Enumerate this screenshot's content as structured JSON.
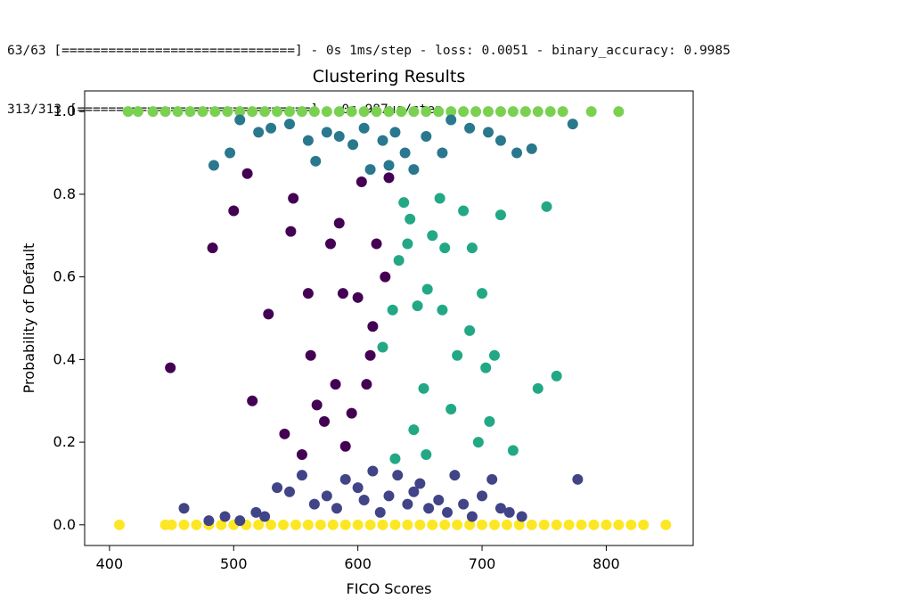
{
  "console": {
    "lines": [
      "63/63 [==============================] - 0s 1ms/step - loss: 0.0051 - binary_accuracy: 0.9985",
      "313/313 [==============================] - 0s 987us/step"
    ]
  },
  "chart_data": {
    "type": "scatter",
    "title": "Clustering Results",
    "xlabel": "FICO Scores",
    "ylabel": "Probability of Default",
    "xlim": [
      380,
      870
    ],
    "ylim": [
      -0.05,
      1.05
    ],
    "xticks": [
      400,
      500,
      600,
      700,
      800
    ],
    "xtick_labels": [
      "400",
      "500",
      "600",
      "700",
      "800"
    ],
    "yticks": [
      0.0,
      0.2,
      0.4,
      0.6,
      0.8,
      1.0
    ],
    "ytick_labels": [
      "0.0",
      "0.2",
      "0.4",
      "0.6",
      "0.8",
      "1.0"
    ],
    "grid": false,
    "legend": "none",
    "series": [
      {
        "color": "#fde725",
        "points": [
          [
            408,
            0.0
          ],
          [
            445,
            0.0
          ],
          [
            450,
            0.0
          ],
          [
            460,
            0.0
          ],
          [
            470,
            0.0
          ],
          [
            480,
            0.0
          ],
          [
            490,
            0.0
          ],
          [
            500,
            0.0
          ],
          [
            510,
            0.0
          ],
          [
            520,
            0.0
          ],
          [
            530,
            0.0
          ],
          [
            540,
            0.0
          ],
          [
            550,
            0.0
          ],
          [
            560,
            0.0
          ],
          [
            570,
            0.0
          ],
          [
            580,
            0.0
          ],
          [
            590,
            0.0
          ],
          [
            600,
            0.0
          ],
          [
            610,
            0.0
          ],
          [
            620,
            0.0
          ],
          [
            630,
            0.0
          ],
          [
            640,
            0.0
          ],
          [
            650,
            0.0
          ],
          [
            660,
            0.0
          ],
          [
            670,
            0.0
          ],
          [
            680,
            0.0
          ],
          [
            690,
            0.0
          ],
          [
            700,
            0.0
          ],
          [
            710,
            0.0
          ],
          [
            720,
            0.0
          ],
          [
            730,
            0.0
          ],
          [
            740,
            0.0
          ],
          [
            750,
            0.0
          ],
          [
            760,
            0.0
          ],
          [
            770,
            0.0
          ],
          [
            780,
            0.0
          ],
          [
            790,
            0.0
          ],
          [
            800,
            0.0
          ],
          [
            810,
            0.0
          ],
          [
            820,
            0.0
          ],
          [
            830,
            0.0
          ],
          [
            848,
            0.0
          ]
        ]
      },
      {
        "color": "#7ad151",
        "points": [
          [
            415,
            1.0
          ],
          [
            423,
            1.0
          ],
          [
            435,
            1.0
          ],
          [
            445,
            1.0
          ],
          [
            455,
            1.0
          ],
          [
            465,
            1.0
          ],
          [
            475,
            1.0
          ],
          [
            485,
            1.0
          ],
          [
            495,
            1.0
          ],
          [
            505,
            1.0
          ],
          [
            515,
            1.0
          ],
          [
            525,
            1.0
          ],
          [
            535,
            1.0
          ],
          [
            545,
            1.0
          ],
          [
            555,
            1.0
          ],
          [
            565,
            1.0
          ],
          [
            575,
            1.0
          ],
          [
            585,
            1.0
          ],
          [
            595,
            1.0
          ],
          [
            605,
            1.0
          ],
          [
            615,
            1.0
          ],
          [
            625,
            1.0
          ],
          [
            635,
            1.0
          ],
          [
            645,
            1.0
          ],
          [
            655,
            1.0
          ],
          [
            665,
            1.0
          ],
          [
            675,
            1.0
          ],
          [
            685,
            1.0
          ],
          [
            695,
            1.0
          ],
          [
            705,
            1.0
          ],
          [
            715,
            1.0
          ],
          [
            725,
            1.0
          ],
          [
            735,
            1.0
          ],
          [
            745,
            1.0
          ],
          [
            755,
            1.0
          ],
          [
            765,
            1.0
          ],
          [
            788,
            1.0
          ],
          [
            810,
            1.0
          ]
        ]
      },
      {
        "color": "#2a788e",
        "points": [
          [
            484,
            0.87
          ],
          [
            497,
            0.9
          ],
          [
            505,
            0.98
          ],
          [
            520,
            0.95
          ],
          [
            530,
            0.96
          ],
          [
            545,
            0.97
          ],
          [
            560,
            0.93
          ],
          [
            566,
            0.88
          ],
          [
            575,
            0.95
          ],
          [
            585,
            0.94
          ],
          [
            596,
            0.92
          ],
          [
            605,
            0.96
          ],
          [
            610,
            0.86
          ],
          [
            620,
            0.93
          ],
          [
            625,
            0.87
          ],
          [
            630,
            0.95
          ],
          [
            638,
            0.9
          ],
          [
            645,
            0.86
          ],
          [
            655,
            0.94
          ],
          [
            668,
            0.9
          ],
          [
            675,
            0.98
          ],
          [
            690,
            0.96
          ],
          [
            705,
            0.95
          ],
          [
            715,
            0.93
          ],
          [
            728,
            0.9
          ],
          [
            740,
            0.91
          ],
          [
            773,
            0.97
          ]
        ]
      },
      {
        "color": "#22a884",
        "points": [
          [
            620,
            0.43
          ],
          [
            628,
            0.52
          ],
          [
            633,
            0.64
          ],
          [
            637,
            0.78
          ],
          [
            640,
            0.68
          ],
          [
            642,
            0.74
          ],
          [
            648,
            0.53
          ],
          [
            653,
            0.33
          ],
          [
            656,
            0.57
          ],
          [
            660,
            0.7
          ],
          [
            666,
            0.79
          ],
          [
            668,
            0.52
          ],
          [
            670,
            0.67
          ],
          [
            675,
            0.28
          ],
          [
            680,
            0.41
          ],
          [
            685,
            0.76
          ],
          [
            690,
            0.47
          ],
          [
            692,
            0.67
          ],
          [
            697,
            0.2
          ],
          [
            700,
            0.56
          ],
          [
            703,
            0.38
          ],
          [
            706,
            0.25
          ],
          [
            710,
            0.41
          ],
          [
            715,
            0.75
          ],
          [
            725,
            0.18
          ],
          [
            745,
            0.33
          ],
          [
            752,
            0.77
          ],
          [
            760,
            0.36
          ],
          [
            630,
            0.16
          ],
          [
            645,
            0.23
          ],
          [
            655,
            0.17
          ]
        ]
      },
      {
        "color": "#440154",
        "points": [
          [
            449,
            0.38
          ],
          [
            483,
            0.67
          ],
          [
            500,
            0.76
          ],
          [
            511,
            0.85
          ],
          [
            515,
            0.3
          ],
          [
            528,
            0.51
          ],
          [
            541,
            0.22
          ],
          [
            546,
            0.71
          ],
          [
            548,
            0.79
          ],
          [
            555,
            0.17
          ],
          [
            560,
            0.56
          ],
          [
            562,
            0.41
          ],
          [
            567,
            0.29
          ],
          [
            573,
            0.25
          ],
          [
            578,
            0.68
          ],
          [
            582,
            0.34
          ],
          [
            585,
            0.73
          ],
          [
            588,
            0.56
          ],
          [
            590,
            0.19
          ],
          [
            595,
            0.27
          ],
          [
            600,
            0.55
          ],
          [
            603,
            0.83
          ],
          [
            607,
            0.34
          ],
          [
            610,
            0.41
          ],
          [
            612,
            0.48
          ],
          [
            615,
            0.68
          ],
          [
            622,
            0.6
          ],
          [
            625,
            0.84
          ]
        ]
      },
      {
        "color": "#414487",
        "points": [
          [
            460,
            0.04
          ],
          [
            480,
            0.01
          ],
          [
            493,
            0.02
          ],
          [
            505,
            0.01
          ],
          [
            518,
            0.03
          ],
          [
            525,
            0.02
          ],
          [
            535,
            0.09
          ],
          [
            545,
            0.08
          ],
          [
            555,
            0.12
          ],
          [
            565,
            0.05
          ],
          [
            575,
            0.07
          ],
          [
            583,
            0.04
          ],
          [
            590,
            0.11
          ],
          [
            600,
            0.09
          ],
          [
            605,
            0.06
          ],
          [
            612,
            0.13
          ],
          [
            618,
            0.03
          ],
          [
            625,
            0.07
          ],
          [
            632,
            0.12
          ],
          [
            640,
            0.05
          ],
          [
            645,
            0.08
          ],
          [
            650,
            0.1
          ],
          [
            657,
            0.04
          ],
          [
            665,
            0.06
          ],
          [
            672,
            0.03
          ],
          [
            678,
            0.12
          ],
          [
            685,
            0.05
          ],
          [
            692,
            0.02
          ],
          [
            700,
            0.07
          ],
          [
            708,
            0.11
          ],
          [
            715,
            0.04
          ],
          [
            722,
            0.03
          ],
          [
            732,
            0.02
          ],
          [
            777,
            0.11
          ]
        ]
      }
    ]
  }
}
